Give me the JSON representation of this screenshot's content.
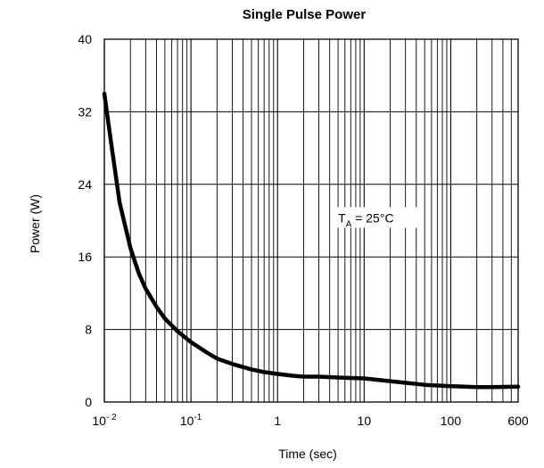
{
  "chart_data": {
    "type": "line",
    "title": "Single Pulse Power",
    "xlabel": "Time (sec)",
    "ylabel": "Power (W)",
    "x_scale": "log",
    "xlim": [
      0.01,
      600
    ],
    "ylim": [
      0,
      40
    ],
    "grid": true,
    "x_ticks": [
      {
        "value": 0.01,
        "base": "10",
        "exp": "- 2"
      },
      {
        "value": 0.1,
        "base": "10",
        "exp": "-1"
      },
      {
        "value": 1,
        "base": "1",
        "exp": ""
      },
      {
        "value": 10,
        "base": "10",
        "exp": ""
      },
      {
        "value": 100,
        "base": "100",
        "exp": ""
      },
      {
        "value": 600,
        "base": "600",
        "exp": ""
      }
    ],
    "y_ticks": [
      {
        "value": 0,
        "label": "0"
      },
      {
        "value": 8,
        "label": "8"
      },
      {
        "value": 16,
        "label": "16"
      },
      {
        "value": 24,
        "label": "24"
      },
      {
        "value": 32,
        "label": "32"
      },
      {
        "value": 40,
        "label": "40"
      }
    ],
    "annotation": {
      "main": "T",
      "sub": "A",
      "rest": " = 25°C",
      "x": 5,
      "y": 20
    },
    "series": [
      {
        "color": "#000000",
        "x": [
          0.01,
          0.012,
          0.015,
          0.02,
          0.025,
          0.03,
          0.04,
          0.05,
          0.07,
          0.1,
          0.15,
          0.2,
          0.3,
          0.5,
          0.7,
          1,
          1.5,
          2,
          3,
          5,
          10,
          20,
          50,
          100,
          200,
          300,
          600
        ],
        "y": [
          34,
          28.5,
          22,
          17,
          14.2,
          12.5,
          10.5,
          9.2,
          7.8,
          6.6,
          5.5,
          4.8,
          4.2,
          3.6,
          3.3,
          3.1,
          2.9,
          2.8,
          2.8,
          2.7,
          2.6,
          2.3,
          1.9,
          1.75,
          1.65,
          1.65,
          1.7
        ]
      }
    ]
  }
}
